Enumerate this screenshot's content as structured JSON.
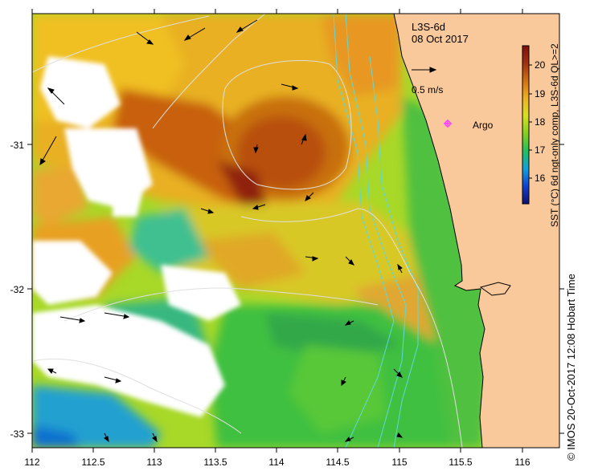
{
  "map": {
    "product": "L3S-6d",
    "date": "08 Oct 2017",
    "scale_label": "0.5 m/s",
    "argo_label": "Argo",
    "credit": "© IMOS 20-Oct-2017 12:08 Hobart Time",
    "colors": {
      "land": "#fac99b",
      "no_data": "#ffffff",
      "contour": "#e0e0e0",
      "isobath": "#5fd8d8",
      "argo": "#ff40ff"
    }
  },
  "colorbar": {
    "title": "SST (°C) 6d ngt-only comp, L3S-6d QL>=2",
    "min": 15.3,
    "max": 20.7,
    "ticks": [
      "16",
      "17",
      "18",
      "19",
      "20"
    ],
    "stops": [
      "#101070",
      "#1040d0",
      "#10a0e0",
      "#20c060",
      "#80d020",
      "#d8e020",
      "#f0b020",
      "#d07010",
      "#a03010",
      "#801008"
    ]
  },
  "axes": {
    "x_ticks": [
      "112",
      "112.5",
      "113",
      "113.5",
      "114",
      "114.5",
      "115",
      "115.5",
      "116"
    ],
    "y_ticks": [
      "-31",
      "-32",
      "-33"
    ],
    "x_range": [
      112,
      116.3
    ],
    "y_range": [
      -33.1,
      -30.1
    ]
  },
  "argo": {
    "lon": 115.37,
    "lat": -30.93
  }
}
